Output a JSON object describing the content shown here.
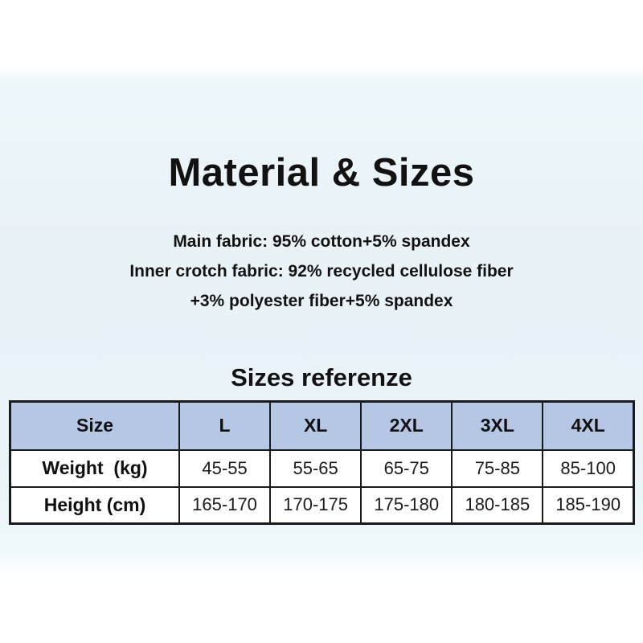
{
  "page": {
    "title": "Material & Sizes",
    "material_lines": [
      "Main fabric: 95% cotton+5% spandex",
      "Inner crotch fabric: 92% recycled cellulose fiber",
      "+3% polyester fiber+5% spandex"
    ],
    "table_heading": "Sizes referenze"
  },
  "size_table": {
    "columns": [
      "Size",
      "L",
      "XL",
      "2XL",
      "3XL",
      "4XL"
    ],
    "rows": [
      {
        "label": "Weight  (kg)",
        "values": [
          "45-55",
          "55-65",
          "65-75",
          "75-85",
          "85-100"
        ]
      },
      {
        "label": "Height (cm)",
        "values": [
          "165-170",
          "170-175",
          "175-180",
          "180-185",
          "185-190"
        ]
      }
    ]
  },
  "colors": {
    "header_row_bg": "#b6c7e6",
    "table_border": "#1a1a1a",
    "page_tint": "#e9f2f7",
    "text": "#121212"
  }
}
